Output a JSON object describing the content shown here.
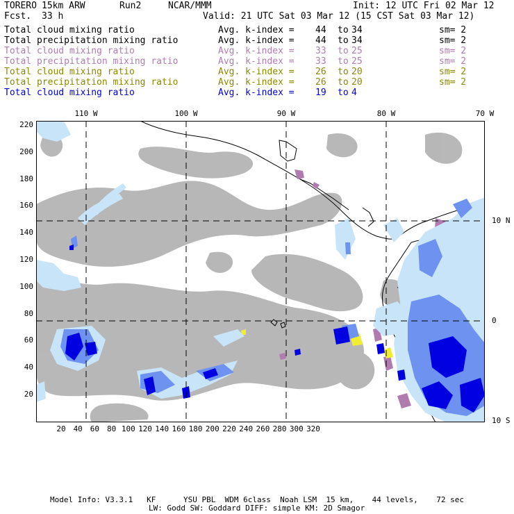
{
  "header": {
    "model": "TORERO",
    "resolution": "15km ARW",
    "run": "Run2",
    "org": "NCAR/MMM",
    "init": "Init: 12 UTC Fri 02 Mar 12",
    "fcst_label": "Fcst.",
    "fcst_value": "33 h",
    "valid": "Valid: 21 UTC Sat 03 Mar 12 (15 CST Sat 03 Mar 12)"
  },
  "fields": [
    {
      "name": "Total cloud mixing ratio",
      "kindex_label": "Avg. k-index =",
      "k_from": "44",
      "to": "to",
      "k_to": "34",
      "sm": "sm= 2",
      "color": "#000000"
    },
    {
      "name": "Total precipitation mixing ratio",
      "kindex_label": "Avg. k-index =",
      "k_from": "44",
      "to": "to",
      "k_to": "34",
      "sm": "sm= 2",
      "color": "#000000"
    },
    {
      "name": "Total cloud mixing ratio",
      "kindex_label": "Avg. k-index =",
      "k_from": "33",
      "to": "to",
      "k_to": "25",
      "sm": "sm= 2",
      "color": "#b07cb0"
    },
    {
      "name": "Total precipitation mixing ratio",
      "kindex_label": "Avg. k-index =",
      "k_from": "33",
      "to": "to",
      "k_to": "25",
      "sm": "sm= 2",
      "color": "#b07cb0"
    },
    {
      "name": "Total cloud mixing ratio",
      "kindex_label": "Avg. k-index =",
      "k_from": "26",
      "to": "to",
      "k_to": "20",
      "sm": "sm= 2",
      "color": "#8a8a00"
    },
    {
      "name": "Total precipitation mixing ratio",
      "kindex_label": "Avg. k-index =",
      "k_from": "26",
      "to": "to",
      "k_to": "20",
      "sm": "sm= 2",
      "color": "#8a8a00"
    },
    {
      "name": "Total cloud mixing ratio",
      "kindex_label": "Avg. k-index =",
      "k_from": "19",
      "to": "to",
      "k_to": "4",
      "sm": "",
      "color": "#0000dd"
    }
  ],
  "map": {
    "x_ticks": [
      "20",
      "40",
      "60",
      "80",
      "100",
      "120",
      "140",
      "160",
      "180",
      "200",
      "220",
      "240",
      "260",
      "280",
      "300",
      "320"
    ],
    "y_ticks": [
      "220",
      "200",
      "180",
      "160",
      "140",
      "120",
      "100",
      "80",
      "60",
      "40",
      "20"
    ],
    "lon_labels": [
      "110 W",
      "100 W",
      "90 W",
      "80 W",
      "70 W"
    ],
    "lat_labels": [
      "10 N",
      "0",
      "10 S"
    ]
  },
  "footer": {
    "line1": "Model Info: V3.3.1   KF      YSU PBL  WDM 6class  Noah LSM  15 km,    44 levels,    72 sec",
    "line2": "LW: Godd SW: Goddard DIFF: simple KM: 2D Smagor"
  },
  "colors": {
    "gray_cloud": "#b4b4b4",
    "purple": "#b07cb0",
    "yellow": "#f0ee30",
    "light_blue": "#c8e4f8",
    "mid_blue": "#6e92f0",
    "dark_blue": "#0000e0"
  }
}
